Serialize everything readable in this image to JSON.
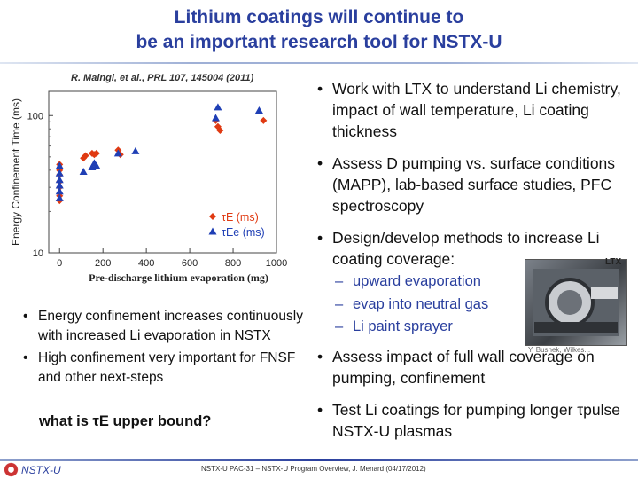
{
  "slide": {
    "title_line1": "Lithium coatings will continue to",
    "title_line2": "be an important research tool for NSTX-U",
    "citation": "R. Maingi, et al., PRL 107, 145004 (2011)"
  },
  "chart_data": {
    "type": "scatter",
    "ylabel": "Energy Confinement Time (ms)",
    "xlabel": "Pre-discharge lithium evaporation (mg)",
    "xlim": [
      -50,
      1000
    ],
    "ylim": [
      10,
      150
    ],
    "yscale": "log",
    "x_ticks": [
      "0",
      "200",
      "400",
      "600",
      "800",
      "1000"
    ],
    "x_tick_values": [
      0,
      200,
      400,
      600,
      800,
      1000
    ],
    "y_ticks": [
      "100",
      "10"
    ],
    "y_tick_values": [
      100,
      10
    ],
    "grid": false,
    "legend_position": "bottom-right",
    "series": [
      {
        "name": "τE (ms)",
        "color": "#e03a12",
        "marker": "diamond",
        "points": [
          [
            0,
            44
          ],
          [
            0,
            40
          ],
          [
            0,
            37
          ],
          [
            0,
            33
          ],
          [
            0,
            30
          ],
          [
            0,
            26
          ],
          [
            0,
            24
          ],
          [
            110,
            49
          ],
          [
            120,
            51
          ],
          [
            150,
            53
          ],
          [
            160,
            52
          ],
          [
            170,
            53
          ],
          [
            270,
            56
          ],
          [
            280,
            52
          ],
          [
            720,
            92
          ],
          [
            730,
            83
          ],
          [
            740,
            78
          ],
          [
            940,
            92
          ]
        ]
      },
      {
        "name": "τEe (ms)",
        "color": "#1f3fb5",
        "marker": "triangle",
        "points": [
          [
            0,
            43
          ],
          [
            0,
            38
          ],
          [
            0,
            34
          ],
          [
            0,
            31
          ],
          [
            0,
            28
          ],
          [
            0,
            25
          ],
          [
            110,
            39
          ],
          [
            150,
            42
          ],
          [
            160,
            45
          ],
          [
            170,
            43
          ],
          [
            270,
            53
          ],
          [
            350,
            55
          ],
          [
            720,
            96
          ],
          [
            730,
            115
          ],
          [
            920,
            109
          ]
        ]
      }
    ],
    "legend": [
      "τE (ms)",
      "τEe (ms)"
    ]
  },
  "right_bullets": [
    "Work with LTX to understand Li chemistry, impact of wall temperature, Li coating thickness",
    "Assess D pumping vs. surface conditions (MAPP), lab-based surface studies, PFC spectroscopy",
    "Design/develop methods to increase Li coating coverage:"
  ],
  "sub_items": [
    "upward evaporation",
    "evap into neutral gas",
    "Li paint sprayer"
  ],
  "lower_bullets": [
    "Assess impact of full wall coverage on pumping, confinement",
    "Test Li coatings for pumping longer τpulse NSTX-U plasmas"
  ],
  "left_bullets": [
    "Energy confinement increases continuously with increased Li evaporation in NSTX",
    "High confinement very important for FNSF and other next-steps"
  ],
  "question": "what is τE upper bound?",
  "photo": {
    "label": "LTX",
    "caption": "Y. Bushek, Wilkes..."
  },
  "footer": {
    "brand": "NSTX-U",
    "text": "NSTX-U PAC-31 – NSTX-U Program Overview, J. Menard (04/17/2012)"
  },
  "colors": {
    "title": "#2a3f9e",
    "subitems": "#2a3f9e",
    "diamond": "#e03a12",
    "triangle": "#1f3fb5"
  }
}
